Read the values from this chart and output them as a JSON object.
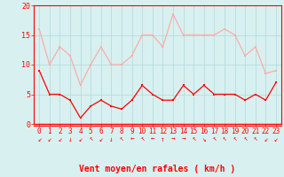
{
  "hours": [
    0,
    1,
    2,
    3,
    4,
    5,
    6,
    7,
    8,
    9,
    10,
    11,
    12,
    13,
    14,
    15,
    16,
    17,
    18,
    19,
    20,
    21,
    22,
    23
  ],
  "wind_avg": [
    9,
    5,
    5,
    4,
    1,
    3,
    4,
    3,
    2.5,
    4,
    6.5,
    5,
    4,
    4,
    6.5,
    5,
    6.5,
    5,
    5,
    5,
    4,
    5,
    4,
    7
  ],
  "wind_gust": [
    16,
    10,
    13,
    11.5,
    6.5,
    10,
    13,
    10,
    10,
    11.5,
    15,
    15,
    13,
    18.5,
    15,
    15,
    15,
    15,
    16,
    15,
    11.5,
    13,
    8.5,
    9
  ],
  "avg_color": "#ff0000",
  "gust_color": "#ffaaaa",
  "bg_color": "#d8f0f0",
  "grid_color": "#b0d8d8",
  "xlabel": "Vent moyen/en rafales ( km/h )",
  "tick_color": "#ff0000",
  "ylim": [
    0,
    20
  ],
  "yticks": [
    0,
    5,
    10,
    15,
    20
  ],
  "arrows": [
    "↙",
    "↙",
    "↙",
    "↓",
    "↙",
    "↖",
    "↙",
    "↓",
    "↖",
    "←",
    "↖",
    "←",
    "↑",
    "→",
    "→",
    "↖",
    "↘",
    "↖",
    "↖",
    "↖",
    "↖",
    "↖",
    "↙",
    "↙"
  ]
}
